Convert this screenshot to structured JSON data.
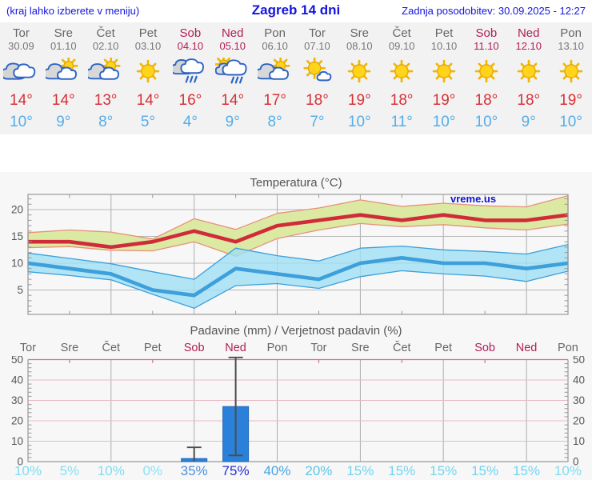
{
  "header": {
    "hint": "(kraj lahko izberete v meniju)",
    "title": "Zagreb 14 dni",
    "updated": "Zadnja posodobitev: 30.09.2025 - 12:27"
  },
  "colors": {
    "link_blue": "#1414dd",
    "weekend": "#b01e55",
    "weekday": "#666666",
    "max_temp_red": "#d93038",
    "min_temp_blue": "#55ade9",
    "strip_bg": "#f2f2f2",
    "chart_bg": "#f7f7f7"
  },
  "forecast": {
    "days": [
      {
        "name": "Tor",
        "date": "30.09",
        "icon": "cloudy",
        "tmax": "14°",
        "tmin": "10°",
        "name_color": "#666666",
        "date_color": "#777777"
      },
      {
        "name": "Sre",
        "date": "01.10",
        "icon": "sun-behind-cloud",
        "tmax": "14°",
        "tmin": "9°",
        "name_color": "#666666",
        "date_color": "#777777"
      },
      {
        "name": "Čet",
        "date": "02.10",
        "icon": "sun-behind-cloud",
        "tmax": "13°",
        "tmin": "8°",
        "name_color": "#666666",
        "date_color": "#777777"
      },
      {
        "name": "Pet",
        "date": "03.10",
        "icon": "sunny",
        "tmax": "14°",
        "tmin": "5°",
        "name_color": "#666666",
        "date_color": "#777777"
      },
      {
        "name": "Sob",
        "date": "04.10",
        "icon": "rain",
        "tmax": "16°",
        "tmin": "4°",
        "name_color": "#b01e55",
        "date_color": "#b01e55"
      },
      {
        "name": "Ned",
        "date": "05.10",
        "icon": "sun-rain",
        "tmax": "14°",
        "tmin": "9°",
        "name_color": "#b01e55",
        "date_color": "#b01e55"
      },
      {
        "name": "Pon",
        "date": "06.10",
        "icon": "sun-behind-cloud",
        "tmax": "17°",
        "tmin": "8°",
        "name_color": "#666666",
        "date_color": "#777777"
      },
      {
        "name": "Tor",
        "date": "07.10",
        "icon": "sun-small-cloud",
        "tmax": "18°",
        "tmin": "7°",
        "name_color": "#666666",
        "date_color": "#777777"
      },
      {
        "name": "Sre",
        "date": "08.10",
        "icon": "sunny",
        "tmax": "19°",
        "tmin": "10°",
        "name_color": "#666666",
        "date_color": "#777777"
      },
      {
        "name": "Čet",
        "date": "09.10",
        "icon": "sunny",
        "tmax": "18°",
        "tmin": "11°",
        "name_color": "#666666",
        "date_color": "#777777"
      },
      {
        "name": "Pet",
        "date": "10.10",
        "icon": "sunny",
        "tmax": "19°",
        "tmin": "10°",
        "name_color": "#666666",
        "date_color": "#777777"
      },
      {
        "name": "Sob",
        "date": "11.10",
        "icon": "sunny",
        "tmax": "18°",
        "tmin": "10°",
        "name_color": "#b01e55",
        "date_color": "#b01e55"
      },
      {
        "name": "Ned",
        "date": "12.10",
        "icon": "sunny",
        "tmax": "18°",
        "tmin": "9°",
        "name_color": "#b01e55",
        "date_color": "#b01e55"
      },
      {
        "name": "Pon",
        "date": "13.10",
        "icon": "sunny",
        "tmax": "19°",
        "tmin": "10°",
        "name_color": "#666666",
        "date_color": "#777777"
      }
    ]
  },
  "chart_data": [
    {
      "type": "line",
      "title": "Temperatura (°C)",
      "watermark": "vreme.us",
      "ylim": [
        0.5,
        22.8
      ],
      "yticks": [
        5,
        10,
        15,
        20
      ],
      "grid": true,
      "x_days": [
        "Tor",
        "Sre",
        "Čet",
        "Pet",
        "Sob",
        "Ned",
        "Pon",
        "Tor",
        "Sre",
        "Čet",
        "Pet",
        "Sob",
        "Ned",
        "Pon"
      ],
      "series": [
        {
          "name": "max_temp",
          "color": "#d02b38",
          "values": [
            14,
            14,
            13,
            14,
            16,
            14,
            17,
            18,
            19,
            18,
            19,
            18,
            18,
            19
          ]
        },
        {
          "name": "max_temp_range",
          "fill": "#dbe9a3",
          "edge": "#e8907a",
          "high": [
            15.7,
            16.2,
            15.8,
            14.5,
            18.3,
            16.3,
            19.3,
            20.3,
            21.8,
            20.6,
            21.2,
            20.7,
            20.5,
            22.6
          ],
          "low": [
            12.9,
            13.1,
            12.4,
            12.3,
            14.0,
            11.3,
            14.6,
            16.2,
            17.4,
            16.8,
            17.2,
            16.6,
            16.2,
            17.3
          ]
        },
        {
          "name": "min_temp",
          "color": "#3d9fdc",
          "values": [
            10,
            9,
            8,
            5,
            4,
            9,
            8,
            7,
            10,
            11,
            10,
            10,
            9,
            10
          ]
        },
        {
          "name": "min_temp_range",
          "fill": "#9fdff2",
          "edge": "#3d9fdc",
          "high": [
            11.9,
            10.9,
            9.9,
            8.4,
            7.0,
            12.8,
            11.4,
            10.4,
            12.8,
            13.2,
            12.5,
            12.2,
            11.7,
            13.5
          ],
          "low": [
            8.4,
            7.7,
            6.9,
            4.2,
            1.6,
            5.8,
            6.2,
            5.3,
            7.5,
            8.6,
            8.0,
            7.6,
            6.6,
            8.5
          ]
        }
      ]
    },
    {
      "type": "bar",
      "title": "Padavine (mm) / Verjetnost padavin (%)",
      "ylim": [
        0,
        52
      ],
      "yticks": [
        0,
        10,
        20,
        30,
        40,
        50
      ],
      "bar_color": "#2b81d9",
      "bar_edge": "#2268b8",
      "whisker_color": "#4c4c4c",
      "day_labels": [
        {
          "label": "Tor",
          "color": "#666666"
        },
        {
          "label": "Sre",
          "color": "#666666"
        },
        {
          "label": "Čet",
          "color": "#666666"
        },
        {
          "label": "Pet",
          "color": "#666666"
        },
        {
          "label": "Sob",
          "color": "#b01e55"
        },
        {
          "label": "Ned",
          "color": "#b01e55"
        },
        {
          "label": "Pon",
          "color": "#666666"
        },
        {
          "label": "Tor",
          "color": "#666666"
        },
        {
          "label": "Sre",
          "color": "#666666"
        },
        {
          "label": "Čet",
          "color": "#666666"
        },
        {
          "label": "Pet",
          "color": "#666666"
        },
        {
          "label": "Sob",
          "color": "#b01e55"
        },
        {
          "label": "Ned",
          "color": "#b01e55"
        },
        {
          "label": "Pon",
          "color": "#666666"
        }
      ],
      "values": [
        0,
        0,
        0,
        0,
        1.5,
        27,
        0,
        0,
        0,
        0,
        0,
        0,
        0,
        0
      ],
      "whiskers": [
        null,
        null,
        null,
        null,
        [
          0.3,
          7
        ],
        [
          3,
          52
        ],
        null,
        null,
        null,
        null,
        null,
        null,
        null,
        null
      ],
      "probabilities": [
        {
          "label": "10%",
          "color": "#7fdcf2"
        },
        {
          "label": "5%",
          "color": "#86e0f4"
        },
        {
          "label": "10%",
          "color": "#7fdcf2"
        },
        {
          "label": "0%",
          "color": "#8ce2f5"
        },
        {
          "label": "35%",
          "color": "#4b8fdf"
        },
        {
          "label": "75%",
          "color": "#2730cf"
        },
        {
          "label": "40%",
          "color": "#47a5e7"
        },
        {
          "label": "20%",
          "color": "#5cc4ea"
        },
        {
          "label": "15%",
          "color": "#70d5ef"
        },
        {
          "label": "15%",
          "color": "#70d5ef"
        },
        {
          "label": "15%",
          "color": "#70d5ef"
        },
        {
          "label": "15%",
          "color": "#70d5ef"
        },
        {
          "label": "15%",
          "color": "#70d5ef"
        },
        {
          "label": "10%",
          "color": "#7fdcf2"
        }
      ]
    }
  ]
}
